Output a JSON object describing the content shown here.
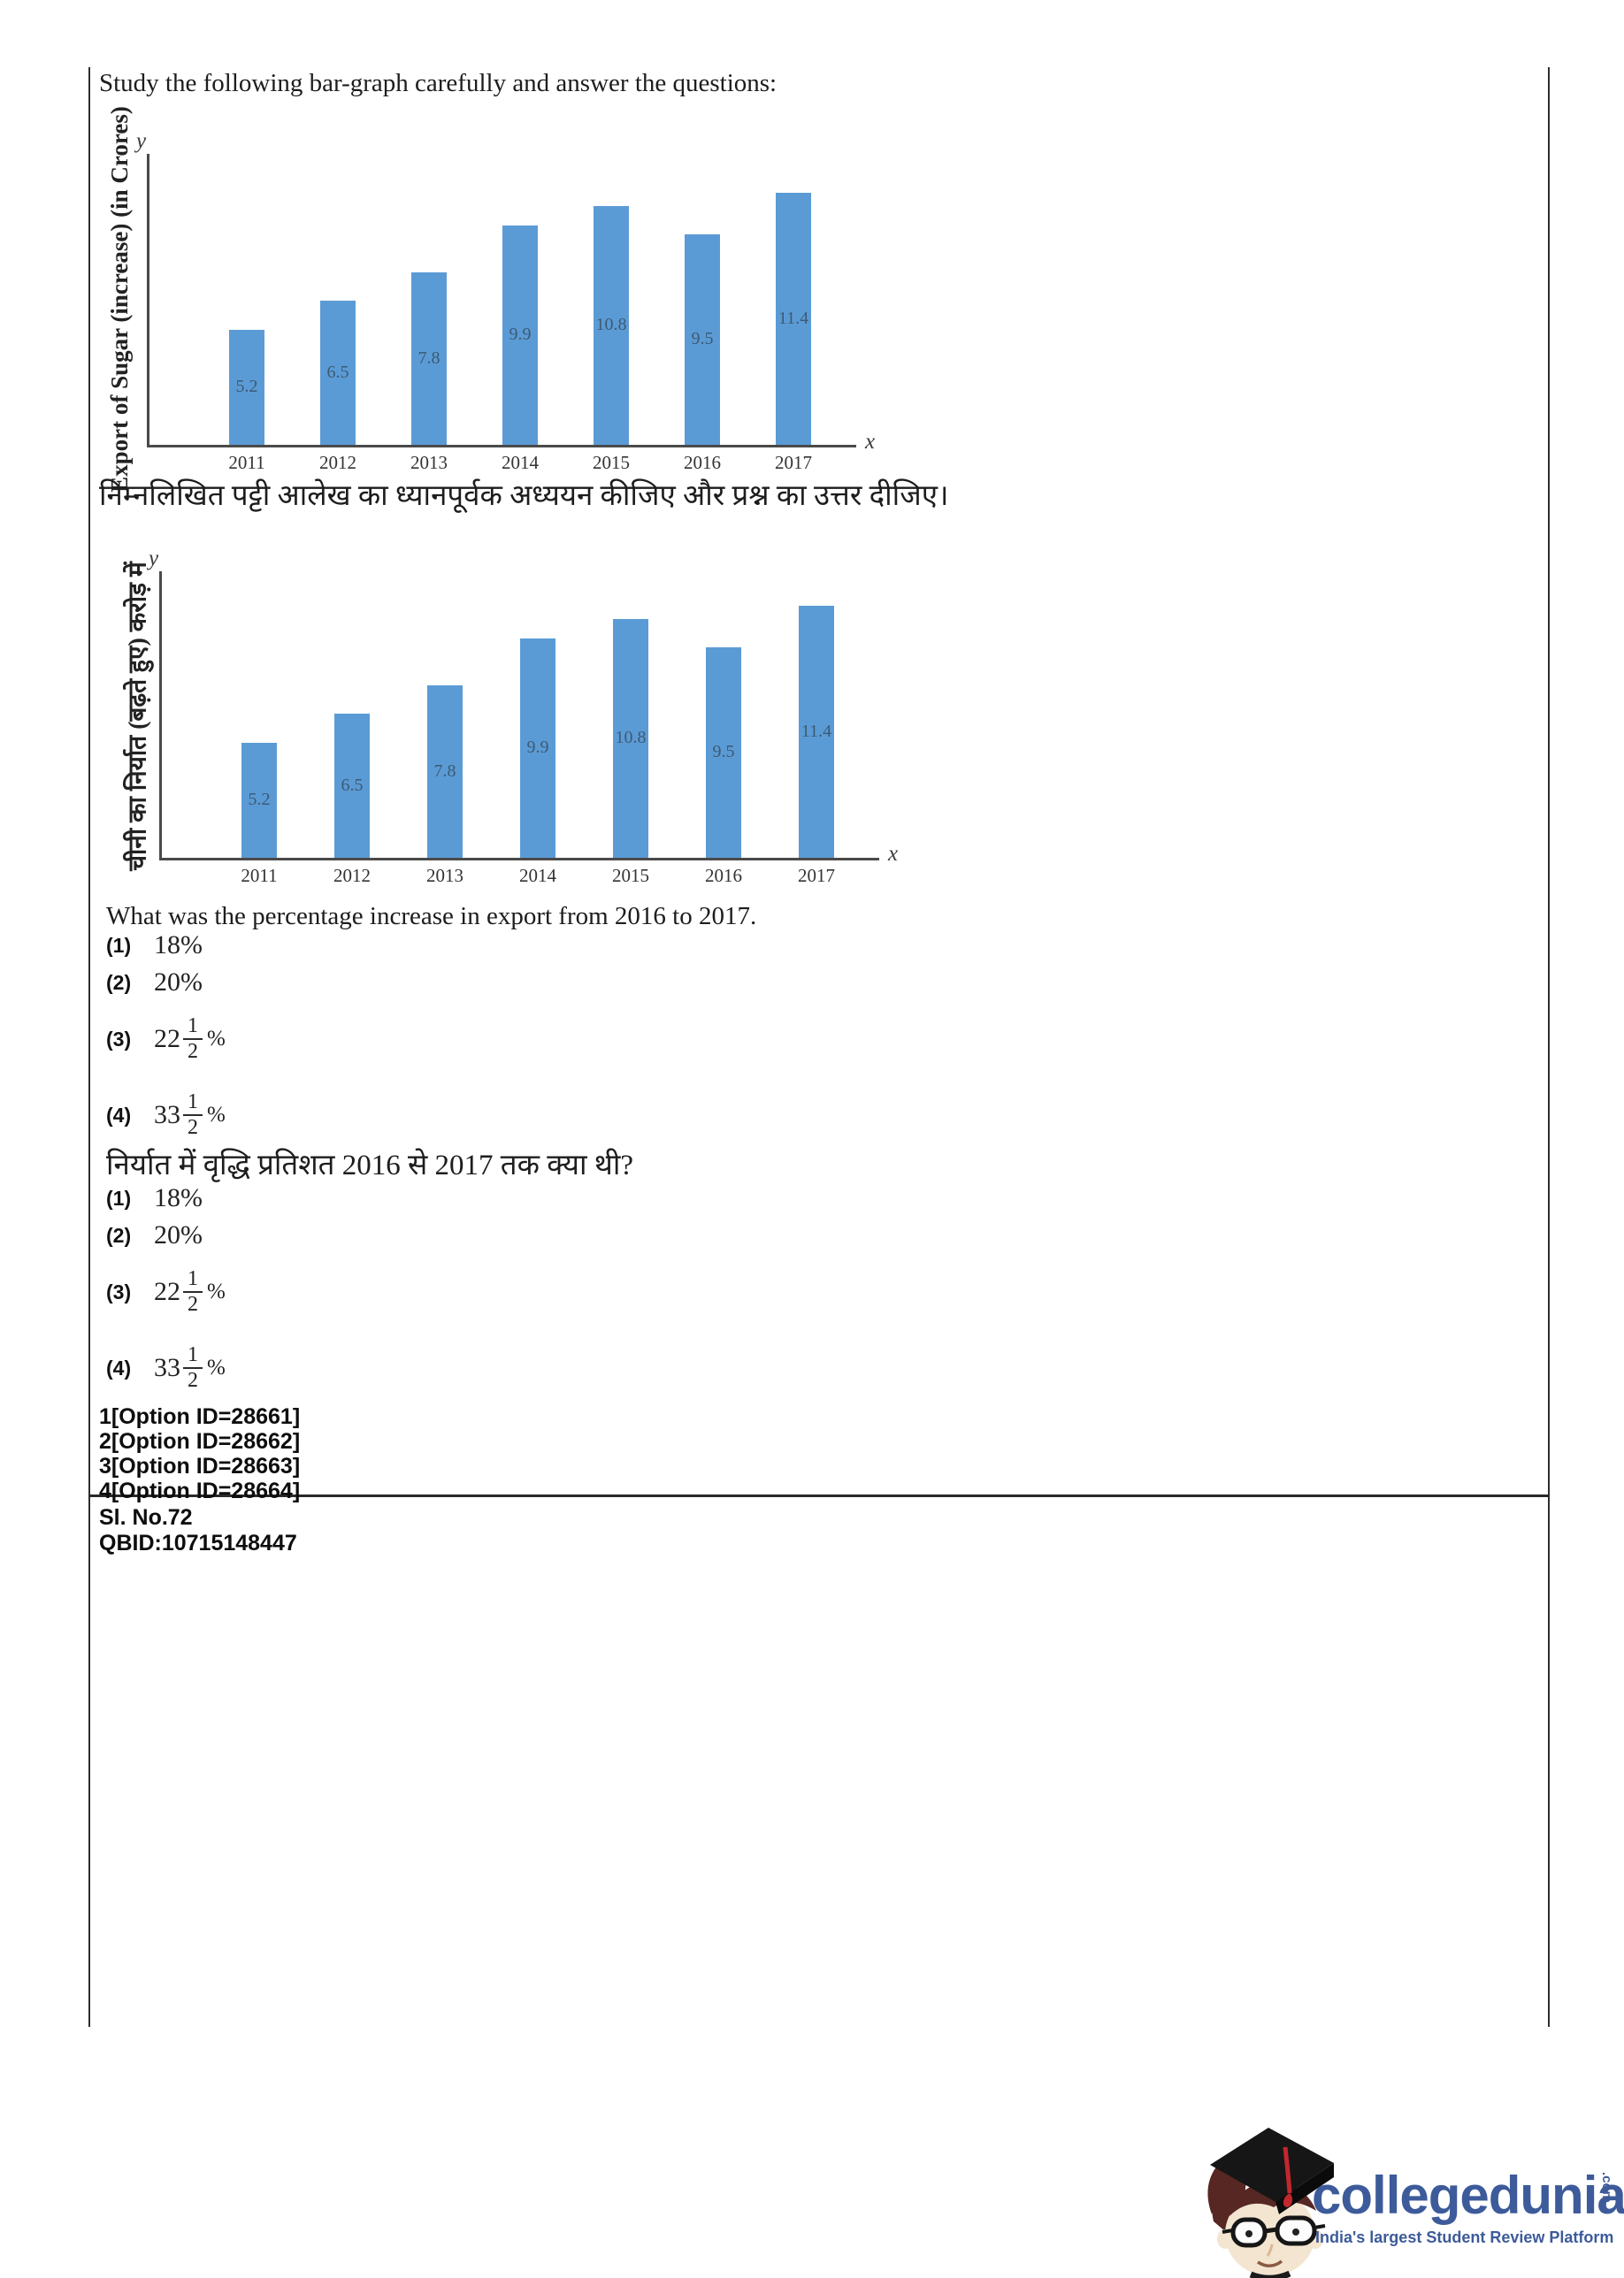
{
  "document": {
    "prompt_en": "Study the following bar-graph carefully and answer the questions:",
    "prompt_hi": "निम्नलिखित पट्टी आलेख का ध्यानपूर्वक अध्ययन कीजिए और प्रश्न का उत्तर दीजिए।",
    "question_en": "What was the percentage increase in export from 2016 to 2017.",
    "question_hi": "निर्यात में वृद्धि प्रतिशत 2016 से 2017 तक क्या थी?",
    "option_ids": [
      "1[Option ID=28661]",
      "2[Option ID=28662]",
      "3[Option ID=28663]",
      "4[Option ID=28664]"
    ],
    "sl_no": "Sl. No.72",
    "qbid": "QBID:10715148447"
  },
  "options": [
    {
      "marker": "(1)",
      "text": "18%"
    },
    {
      "marker": "(2)",
      "text": "20%"
    },
    {
      "marker": "(3)",
      "whole": "22",
      "numerator": "1",
      "denominator": "2",
      "suffix": "%"
    },
    {
      "marker": "(4)",
      "whole": "33",
      "numerator": "1",
      "denominator": "2",
      "suffix": "%"
    }
  ],
  "chart_data": [
    {
      "type": "bar",
      "title": "",
      "categories": [
        "2011",
        "2012",
        "2013",
        "2014",
        "2015",
        "2016",
        "2017"
      ],
      "values": [
        5.2,
        6.5,
        7.8,
        9.9,
        10.8,
        9.5,
        11.4
      ],
      "ylabel": "Export of Sugar (increase) (in Crores)",
      "xlabel": "",
      "axis_letters": {
        "x": "x",
        "y": "y"
      },
      "ylim": [
        0,
        12
      ],
      "grid": false,
      "legend": "none",
      "bar_color": "#5b9bd5"
    },
    {
      "type": "bar",
      "title": "",
      "categories": [
        "2011",
        "2012",
        "2013",
        "2014",
        "2015",
        "2016",
        "2017"
      ],
      "values": [
        5.2,
        6.5,
        7.8,
        9.9,
        10.8,
        9.5,
        11.4
      ],
      "ylabel": "चीनी  का निर्यात (बढ़ते हुए)  करोड़ में",
      "xlabel": "",
      "axis_letters": {
        "x": "x",
        "y": "y"
      },
      "ylim": [
        0,
        12
      ],
      "grid": false,
      "legend": "none",
      "bar_color": "#5b9bd5"
    }
  ],
  "logo": {
    "brand": "collegedunia",
    "tld": ".com",
    "tagline": "India's largest Student Review Platform",
    "mascot": "student-with-graduation-cap"
  },
  "colors": {
    "bar": "#5b9bd5",
    "bar_label": "#3c5a74",
    "axis": "#4a4a4a",
    "text": "#1d1d1d",
    "brand_blue": "#3d5b9a"
  }
}
